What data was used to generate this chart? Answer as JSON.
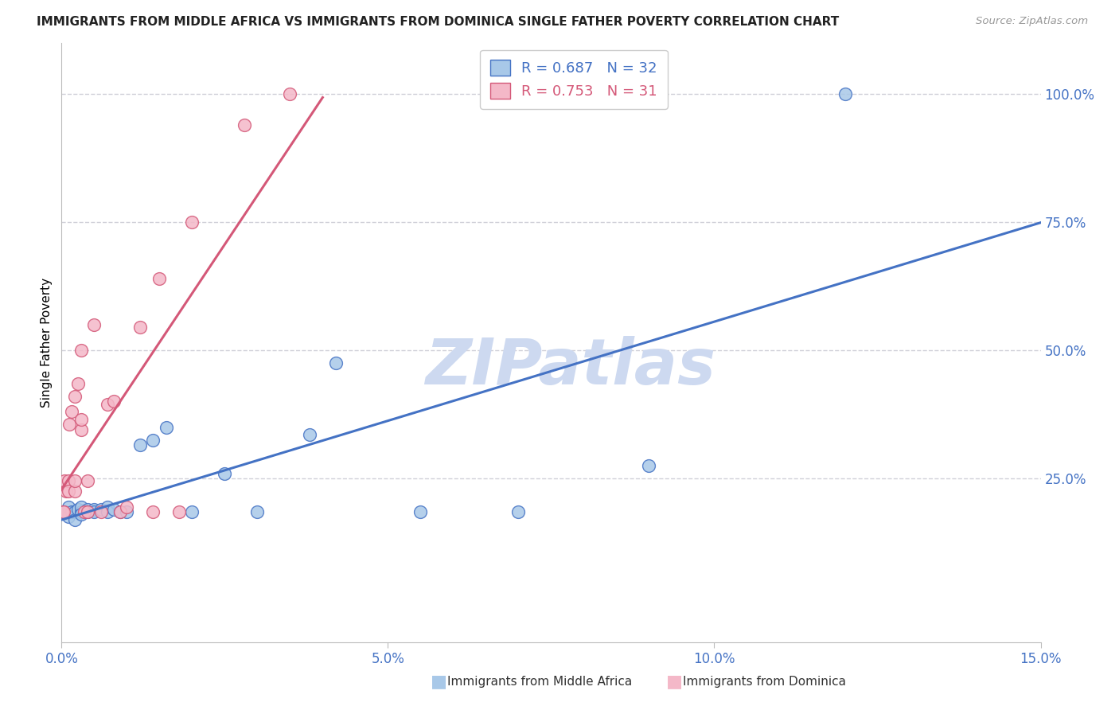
{
  "title": "IMMIGRANTS FROM MIDDLE AFRICA VS IMMIGRANTS FROM DOMINICA SINGLE FATHER POVERTY CORRELATION CHART",
  "source": "Source: ZipAtlas.com",
  "ylabel": "Single Father Poverty",
  "xlim": [
    0.0,
    0.15
  ],
  "ylim": [
    -0.07,
    1.1
  ],
  "blue_R": 0.687,
  "blue_N": 32,
  "pink_R": 0.753,
  "pink_N": 31,
  "blue_color": "#a8c8e8",
  "blue_line_color": "#4472c4",
  "pink_color": "#f4b8c8",
  "pink_line_color": "#d45878",
  "legend_label_blue": "Immigrants from Middle Africa",
  "legend_label_pink": "Immigrants from Dominica",
  "watermark": "ZIPatlas",
  "watermark_color": "#cdd9f0",
  "background_color": "#ffffff",
  "grid_color": "#d0d0d8",
  "blue_x": [
    0.0005,
    0.001,
    0.001,
    0.0015,
    0.002,
    0.002,
    0.0025,
    0.003,
    0.003,
    0.003,
    0.004,
    0.004,
    0.005,
    0.005,
    0.006,
    0.007,
    0.007,
    0.008,
    0.009,
    0.01,
    0.012,
    0.014,
    0.016,
    0.02,
    0.025,
    0.03,
    0.038,
    0.042,
    0.055,
    0.07,
    0.09,
    0.12
  ],
  "blue_y": [
    0.185,
    0.195,
    0.175,
    0.185,
    0.185,
    0.17,
    0.19,
    0.185,
    0.195,
    0.18,
    0.19,
    0.185,
    0.19,
    0.185,
    0.19,
    0.195,
    0.185,
    0.19,
    0.185,
    0.185,
    0.315,
    0.325,
    0.35,
    0.185,
    0.26,
    0.185,
    0.335,
    0.475,
    0.185,
    0.185,
    0.275,
    1.0
  ],
  "pink_x": [
    0.0002,
    0.0003,
    0.0005,
    0.0007,
    0.001,
    0.001,
    0.0012,
    0.0015,
    0.002,
    0.002,
    0.002,
    0.0025,
    0.003,
    0.003,
    0.003,
    0.0035,
    0.004,
    0.004,
    0.005,
    0.006,
    0.007,
    0.008,
    0.009,
    0.01,
    0.012,
    0.014,
    0.015,
    0.018,
    0.02,
    0.028,
    0.035
  ],
  "pink_y": [
    0.185,
    0.185,
    0.245,
    0.225,
    0.245,
    0.225,
    0.355,
    0.38,
    0.225,
    0.245,
    0.41,
    0.435,
    0.345,
    0.365,
    0.5,
    0.185,
    0.185,
    0.245,
    0.55,
    0.185,
    0.395,
    0.4,
    0.185,
    0.195,
    0.545,
    0.185,
    0.64,
    0.185,
    0.75,
    0.94,
    1.0
  ]
}
